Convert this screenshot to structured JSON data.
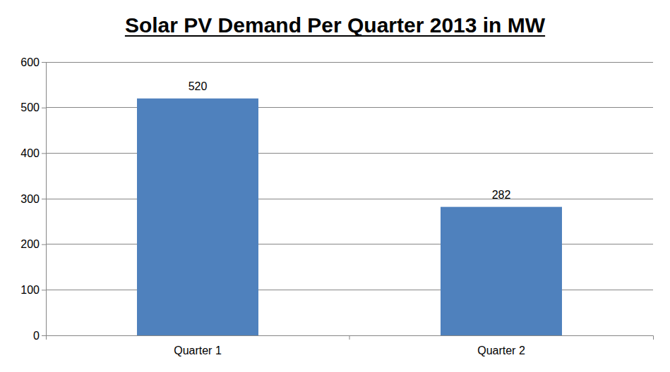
{
  "chart_data": {
    "type": "bar",
    "title": "Solar PV Demand Per Quarter 2013 in MW",
    "categories": [
      "Quarter 1",
      "Quarter 2"
    ],
    "values": [
      520,
      282
    ],
    "color": "#4f81bd",
    "ylim": [
      0,
      600
    ],
    "yticks": [
      0,
      100,
      200,
      300,
      400,
      500,
      600
    ],
    "grid": true,
    "data_labels": true
  }
}
